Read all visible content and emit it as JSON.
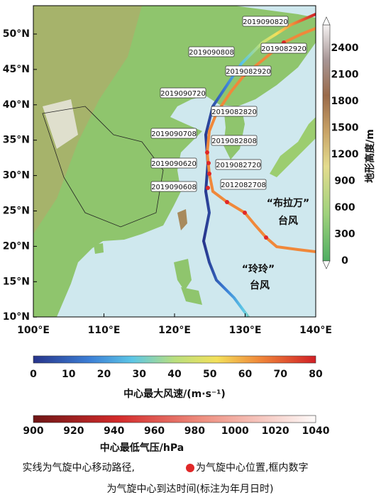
{
  "map": {
    "lon_ticks": [
      "100°E",
      "110°E",
      "120°E",
      "130°E",
      "140°E"
    ],
    "lat_ticks": [
      "50°N",
      "45°N",
      "40°N",
      "35°N",
      "30°N",
      "25°N",
      "20°N",
      "15°N",
      "10°N"
    ],
    "track_times": [
      "2019090820",
      "2019082920",
      "2019090808",
      "2019082920",
      "2019090720",
      "2019082820",
      "2019090708",
      "2019082808",
      "2019090620",
      "2019082720",
      "2019090608",
      "2012082708"
    ],
    "typhoon_bualoi": [
      "“布拉万”",
      "台风"
    ],
    "typhoon_lingling": [
      "“玲玲”",
      "台风"
    ]
  },
  "elevation_bar": {
    "title": "地形高度/m",
    "ticks": [
      0,
      300,
      600,
      900,
      1200,
      1500,
      1800,
      2100,
      2400
    ]
  },
  "wind_bar": {
    "title": "中心最大风速/(m·s⁻¹)",
    "ticks": [
      0,
      10,
      20,
      30,
      40,
      50,
      60,
      70,
      80
    ]
  },
  "pressure_bar": {
    "title": "中心最低气压/hPa",
    "ticks": [
      900,
      920,
      940,
      960,
      980,
      1000,
      1020,
      1040
    ]
  },
  "caption": {
    "line1_before_dot": "实线为气旋中心移动路径,",
    "line1_after_dot": "为气旋中心位置,框内数字",
    "line2": "为气旋中心到达时间(标注为年月日时)"
  }
}
